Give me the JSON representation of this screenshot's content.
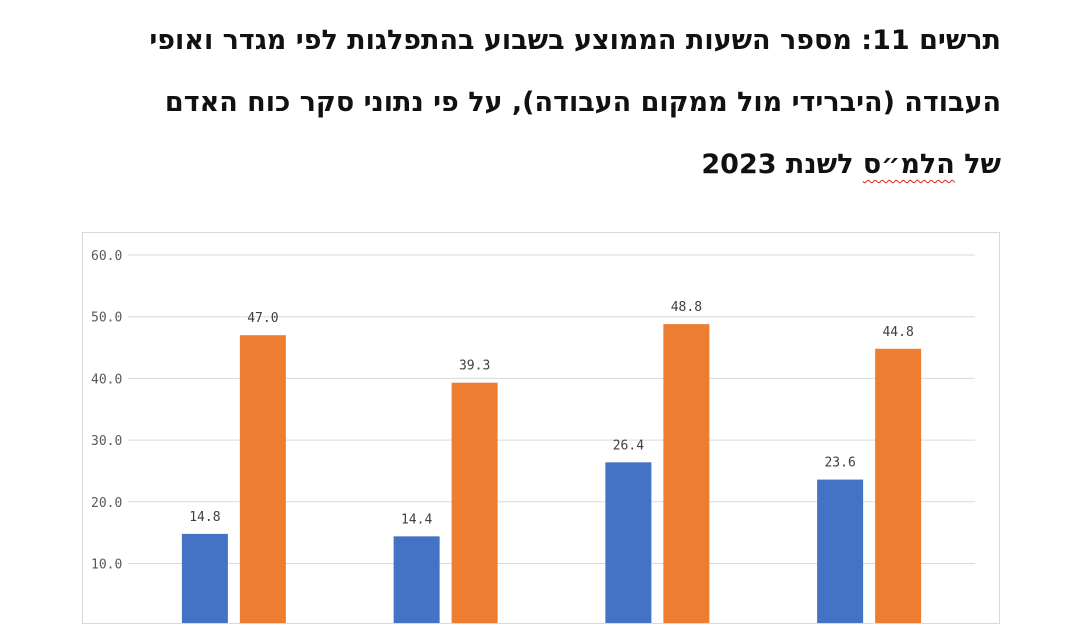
{
  "title": {
    "line1": "תרשים 11: מספר השעות הממוצע בשבוע בהתפלגות לפי מגדר ואופי",
    "line2": "העבודה (היברידי מול ממקום העבודה), על פי נתוני סקר כוח האדם",
    "line3_prefix": "של ",
    "line3_marked": "הלמ״ס",
    "line3_suffix": " לשנת 2023"
  },
  "chart_data": {
    "type": "bar",
    "categories": [
      "",
      "",
      "",
      ""
    ],
    "series": [
      {
        "values": [
          14.8,
          14.4,
          26.4,
          23.6
        ],
        "color": "#4472c4"
      },
      {
        "values": [
          47.0,
          39.3,
          48.8,
          44.8
        ],
        "color": "#ed7d31"
      }
    ],
    "y_ticks": [
      "60.0",
      "50.0",
      "40.0",
      "30.0",
      "20.0",
      "10.0"
    ],
    "ylim": [
      0,
      60
    ],
    "grid": true,
    "data_labels": true
  }
}
